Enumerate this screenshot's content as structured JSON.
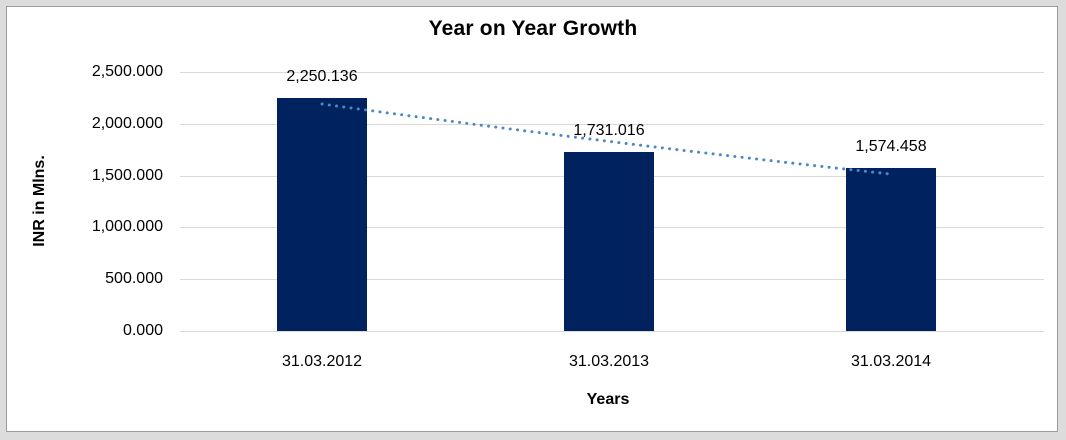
{
  "chart_data": {
    "type": "bar",
    "title": "Year on Year Growth",
    "xlabel": "Years",
    "ylabel": "INR in Mlns.",
    "categories": [
      "31.03.2012",
      "31.03.2013",
      "31.03.2014"
    ],
    "values": [
      2250.136,
      1731.016,
      1574.458
    ],
    "value_labels": [
      "2,250.136",
      "1,731.016",
      "1,574.458"
    ],
    "ylim": [
      0,
      2500
    ],
    "y_ticks": [
      0,
      500,
      1000,
      1500,
      2000,
      2500
    ],
    "y_tick_labels": [
      "0.000",
      "500.000",
      "1,000.000",
      "1,500.000",
      "2,000.000",
      "2,500.000"
    ],
    "grid": true,
    "legend_position": "none",
    "bar_color": "#00235f",
    "gridline_color": "#d9d9d9",
    "trendline": {
      "style": "dotted",
      "color": "#4f86c6"
    }
  }
}
